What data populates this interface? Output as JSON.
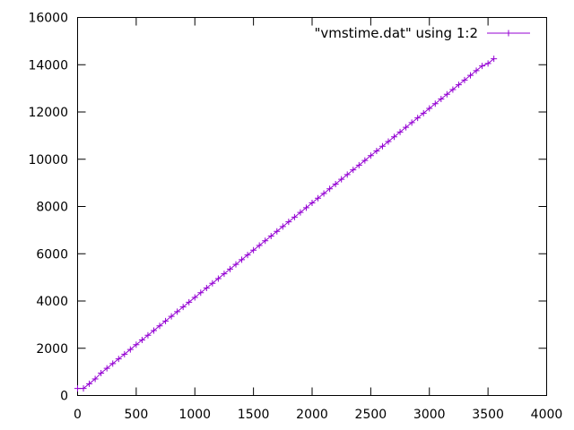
{
  "chart_data": {
    "type": "line",
    "title": "",
    "xlabel": "",
    "ylabel": "",
    "xlim": [
      0,
      4000
    ],
    "ylim": [
      0,
      16000
    ],
    "x_ticks": [
      0,
      500,
      1000,
      1500,
      2000,
      2500,
      3000,
      3500,
      4000
    ],
    "y_ticks": [
      0,
      2000,
      4000,
      6000,
      8000,
      10000,
      12000,
      14000,
      16000
    ],
    "x_tick_labels": [
      "0",
      "500",
      "1000",
      "1500",
      "2000",
      "2500",
      "3000",
      "3500",
      "4000"
    ],
    "y_tick_labels": [
      "0",
      "2000",
      "4000",
      "6000",
      "8000",
      "10000",
      "12000",
      "14000",
      "16000"
    ],
    "grid": false,
    "legend_position": "top-right",
    "series": [
      {
        "name": "\"vmstime.dat\" using 1:2",
        "color": "#9400d3",
        "marker": "plus",
        "x": [
          0,
          50,
          100,
          150,
          200,
          250,
          300,
          350,
          400,
          450,
          500,
          550,
          600,
          650,
          700,
          750,
          800,
          850,
          900,
          950,
          1000,
          1050,
          1100,
          1150,
          1200,
          1250,
          1300,
          1350,
          1400,
          1450,
          1500,
          1550,
          1600,
          1650,
          1700,
          1750,
          1800,
          1850,
          1900,
          1950,
          2000,
          2050,
          2100,
          2150,
          2200,
          2250,
          2300,
          2350,
          2400,
          2450,
          2500,
          2550,
          2600,
          2650,
          2700,
          2750,
          2800,
          2850,
          2900,
          2950,
          3000,
          3050,
          3100,
          3150,
          3200,
          3250,
          3300,
          3350,
          3400,
          3450,
          3500,
          3550
        ],
        "y": [
          300,
          300,
          500,
          700,
          950,
          1150,
          1350,
          1550,
          1750,
          1950,
          2150,
          2350,
          2550,
          2750,
          2950,
          3150,
          3350,
          3550,
          3750,
          3950,
          4150,
          4350,
          4550,
          4750,
          4950,
          5150,
          5350,
          5550,
          5750,
          5950,
          6150,
          6350,
          6550,
          6750,
          6950,
          7150,
          7350,
          7550,
          7750,
          7950,
          8150,
          8350,
          8550,
          8750,
          8950,
          9150,
          9350,
          9550,
          9750,
          9950,
          10150,
          10350,
          10550,
          10750,
          10950,
          11150,
          11350,
          11550,
          11750,
          11950,
          12150,
          12350,
          12550,
          12750,
          12950,
          13150,
          13350,
          13550,
          13750,
          13950,
          14050,
          14250
        ]
      }
    ]
  }
}
